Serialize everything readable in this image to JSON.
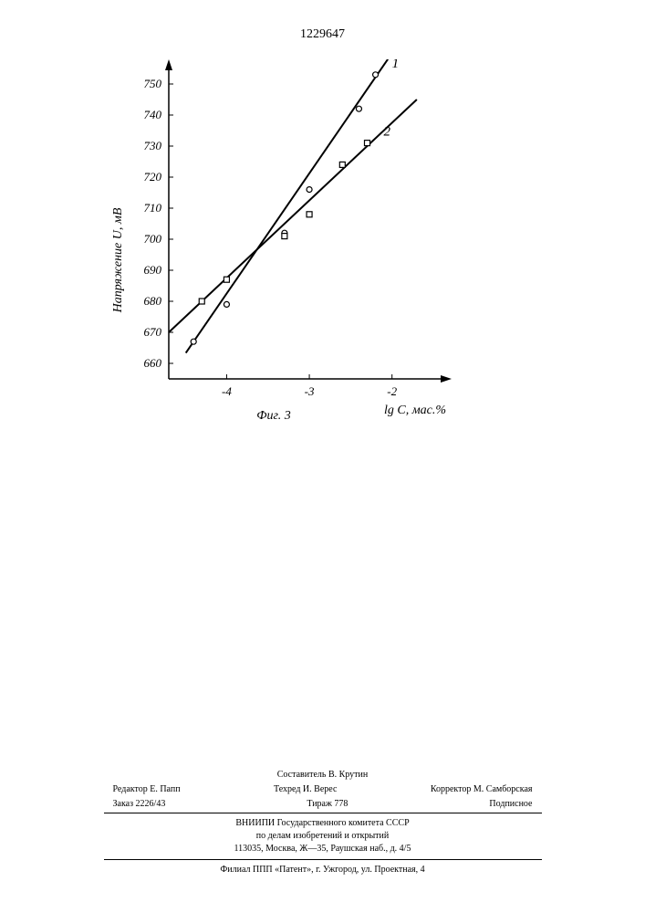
{
  "page_number": "1229647",
  "chart": {
    "type": "line",
    "ylabel": "Напряжение U, мВ",
    "xlabel": "lg C, мас.%",
    "figure_label": "Фиг. 3",
    "ylim": [
      655,
      755
    ],
    "xlim": [
      -4.7,
      -1.5
    ],
    "yticks": [
      660,
      670,
      680,
      690,
      700,
      710,
      720,
      730,
      740,
      750
    ],
    "xticks": [
      -4,
      -3,
      -2
    ],
    "series": [
      {
        "label": "1",
        "marker": "circle",
        "color": "#000000",
        "line_width": 2,
        "points": [
          {
            "x": -4.4,
            "y": 667
          },
          {
            "x": -4.0,
            "y": 679
          },
          {
            "x": -3.3,
            "y": 702
          },
          {
            "x": -3.0,
            "y": 716
          },
          {
            "x": -2.4,
            "y": 742
          },
          {
            "x": -2.2,
            "y": 753
          }
        ],
        "line_end": {
          "x": -2.05,
          "y": 758
        }
      },
      {
        "label": "2",
        "marker": "square",
        "color": "#000000",
        "line_width": 2,
        "points": [
          {
            "x": -4.3,
            "y": 680
          },
          {
            "x": -4.0,
            "y": 687
          },
          {
            "x": -3.3,
            "y": 701
          },
          {
            "x": -3.0,
            "y": 708
          },
          {
            "x": -2.6,
            "y": 724
          },
          {
            "x": -2.3,
            "y": 731
          }
        ],
        "line_start": {
          "x": -4.7,
          "y": 670
        },
        "line_end": {
          "x": -1.7,
          "y": 745
        }
      }
    ],
    "axis_color": "#000000",
    "tick_length": 5,
    "marker_size": 6,
    "label_fontsize": 14,
    "tick_fontsize": 13,
    "background_color": "#ffffff"
  },
  "footer": {
    "compiler": "Составитель В. Крутин",
    "editor": "Редактор Е. Папп",
    "tehred": "Техред И. Верес",
    "corrector": "Корректор М. Самборская",
    "order": "Заказ 2226/43",
    "tirage": "Тираж 778",
    "subscription": "Подписное",
    "org1": "ВНИИПИ Государственного комитета СССР",
    "org2": "по делам изобретений и открытий",
    "address1": "113035, Москва, Ж—35, Раушская наб., д. 4/5",
    "address2": "Филиал ППП «Патент», г. Ужгород, ул. Проектная, 4"
  }
}
